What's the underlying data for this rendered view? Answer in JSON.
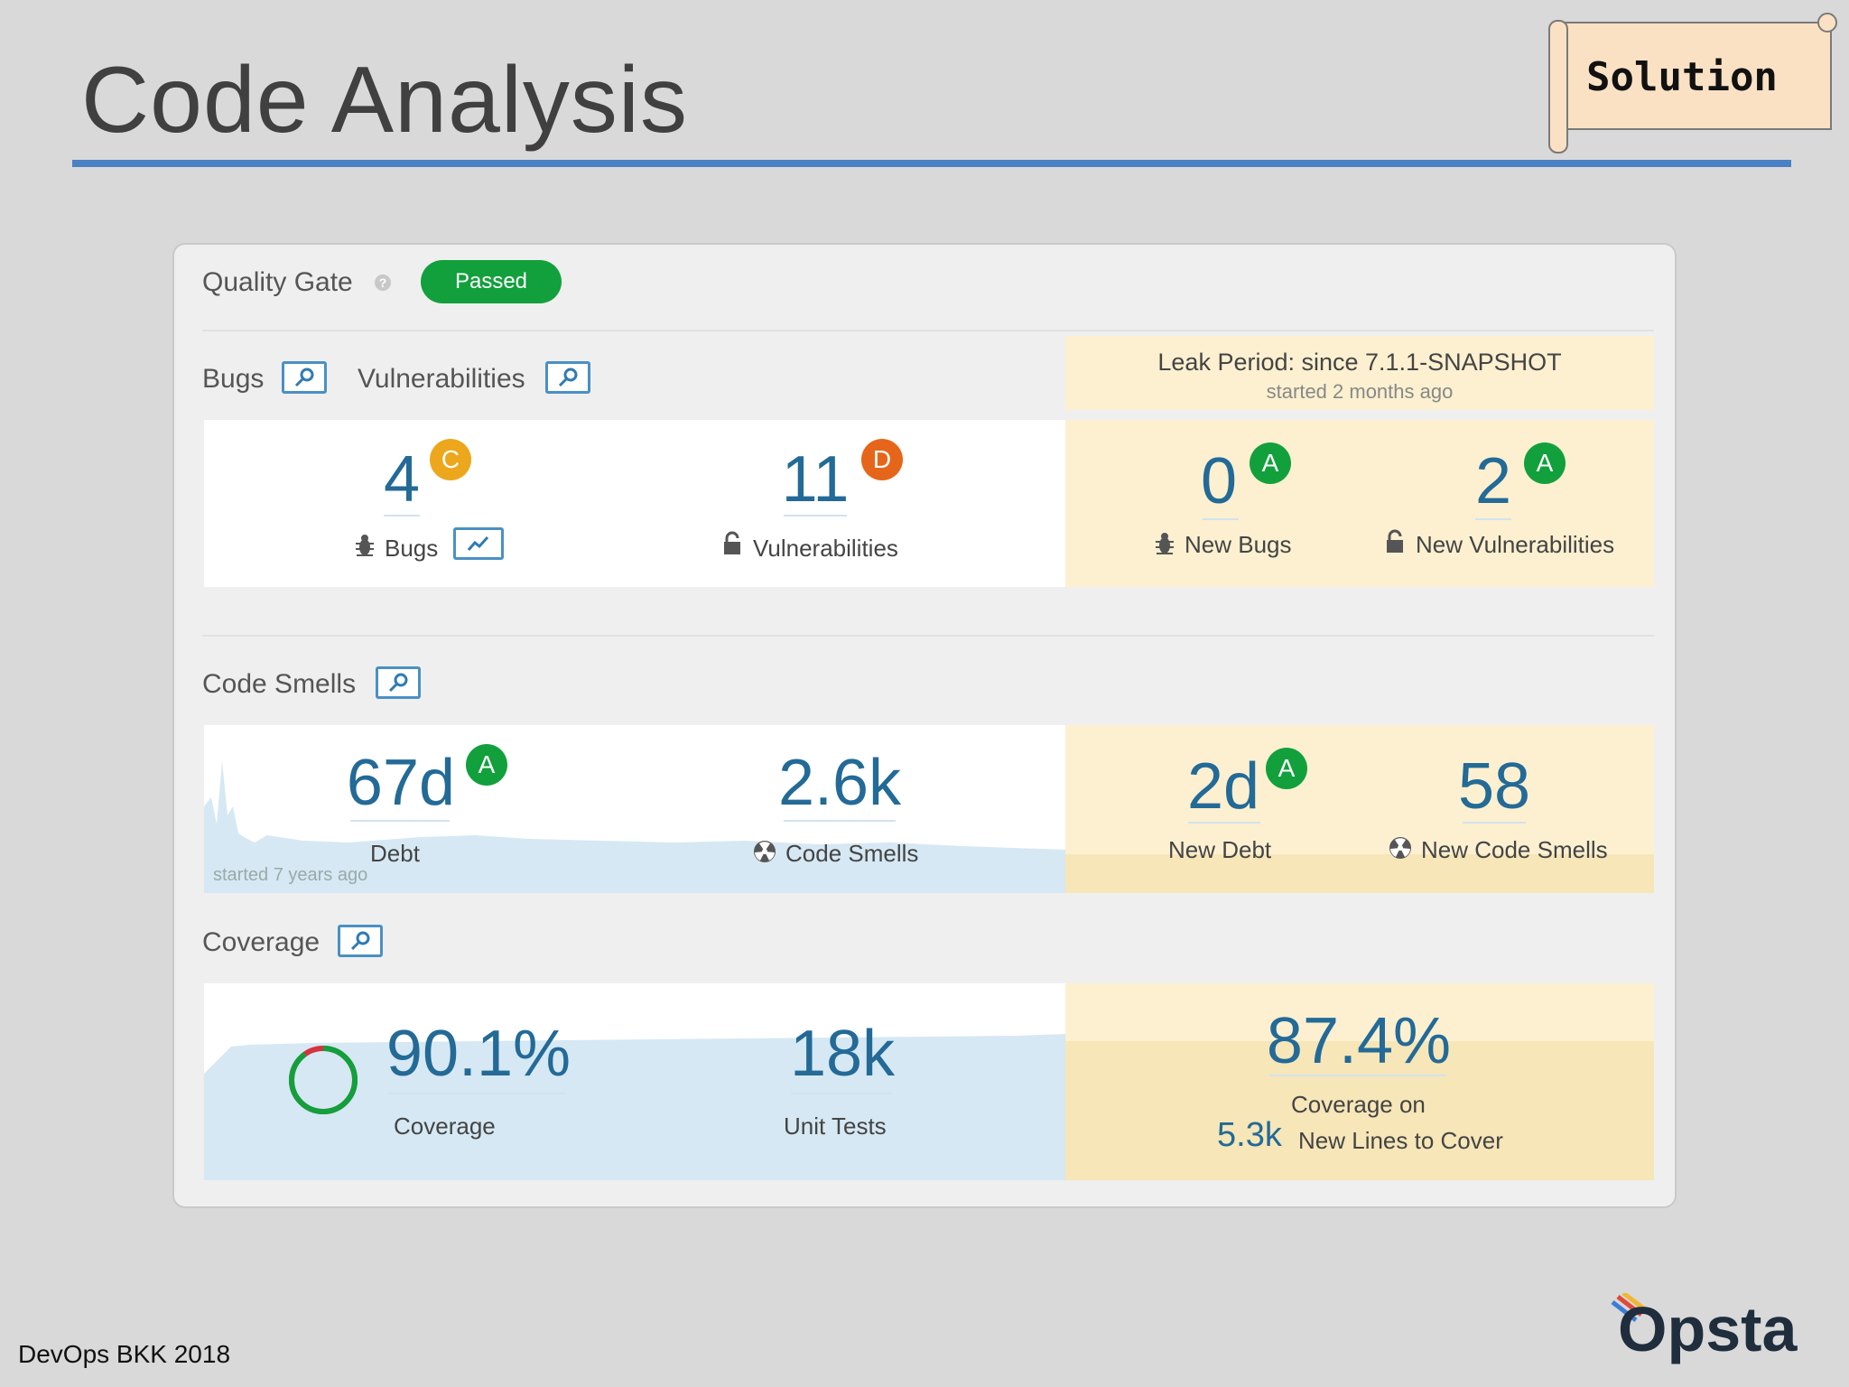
{
  "slide": {
    "title": "Code Analysis",
    "solution_label": "Solution",
    "footer": "DevOps BKK 2018",
    "logo_text": "Opsta"
  },
  "colors": {
    "title_rule": "#4a81c4",
    "passed": "#12a03c",
    "rating_a": "#12a03c",
    "rating_c": "#eca71c",
    "rating_d": "#e5661b",
    "metric_blue": "#236a97",
    "leak_bg": "#fcf0d0"
  },
  "quality_gate": {
    "label": "Quality Gate",
    "help_icon": "question-icon",
    "status": "Passed"
  },
  "bugs_section": {
    "bugs_title": "Bugs",
    "vuln_title": "Vulnerabilities",
    "leak": {
      "title": "Leak Period: since 7.1.1-SNAPSHOT",
      "subtitle": "started 2 months ago"
    },
    "bugs": {
      "value": "4",
      "rating": "C",
      "label": "Bugs",
      "icon": "bug-icon"
    },
    "vulnerabilities": {
      "value": "11",
      "rating": "D",
      "label": "Vulnerabilities",
      "icon": "lock-icon"
    },
    "new_bugs": {
      "value": "0",
      "rating": "A",
      "label": "New Bugs",
      "icon": "bug-icon"
    },
    "new_vulnerabilities": {
      "value": "2",
      "rating": "A",
      "label": "New Vulnerabilities",
      "icon": "lock-icon"
    }
  },
  "code_smells_section": {
    "title": "Code Smells",
    "debt": {
      "value": "67d",
      "rating": "A",
      "label": "Debt",
      "history_note": "started 7 years ago"
    },
    "smells": {
      "value": "2.6k",
      "label": "Code Smells",
      "icon": "radiation-icon"
    },
    "new_debt": {
      "value": "2d",
      "rating": "A",
      "label": "New Debt"
    },
    "new_smells": {
      "value": "58",
      "label": "New Code Smells",
      "icon": "radiation-icon"
    }
  },
  "coverage_section": {
    "title": "Coverage",
    "coverage": {
      "value": "90.1%",
      "label": "Coverage",
      "fraction": 0.901
    },
    "tests": {
      "value": "18k",
      "label": "Unit Tests"
    },
    "new_coverage": {
      "value": "87.4%",
      "label_line1": "Coverage on",
      "lines_value": "5.3k",
      "lines_label": "New Lines to Cover"
    }
  }
}
